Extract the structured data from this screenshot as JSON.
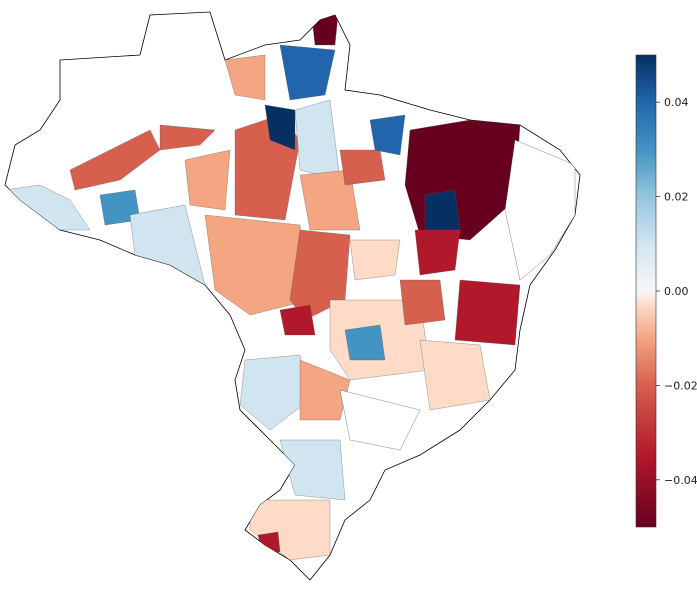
{
  "map": {
    "region": "Brazil",
    "subdivision": "municipalities",
    "colormap": "RdBu diverging (red = negative, blue = positive)",
    "unlabeled_region_fill": "#ffffff",
    "border_color": "#000000"
  },
  "colorbar": {
    "min": -0.05,
    "max": 0.05,
    "ticks": [
      {
        "value": 0.04,
        "label": "0.04"
      },
      {
        "value": 0.02,
        "label": "0.02"
      },
      {
        "value": 0.0,
        "label": "0.00"
      },
      {
        "value": -0.02,
        "label": "−0.02"
      },
      {
        "value": -0.04,
        "label": "−0.04"
      }
    ],
    "color_stops": [
      {
        "value": -0.05,
        "color": "#67001f"
      },
      {
        "value": -0.035,
        "color": "#b2182b"
      },
      {
        "value": -0.02,
        "color": "#d6604d"
      },
      {
        "value": -0.01,
        "color": "#f4a582"
      },
      {
        "value": -0.003,
        "color": "#fddbc7"
      },
      {
        "value": 0.0,
        "color": "#f7f7f7"
      },
      {
        "value": 0.01,
        "color": "#d1e5f0"
      },
      {
        "value": 0.02,
        "color": "#92c5de"
      },
      {
        "value": 0.03,
        "color": "#4393c3"
      },
      {
        "value": 0.04,
        "color": "#2166ac"
      },
      {
        "value": 0.05,
        "color": "#053061"
      }
    ]
  }
}
